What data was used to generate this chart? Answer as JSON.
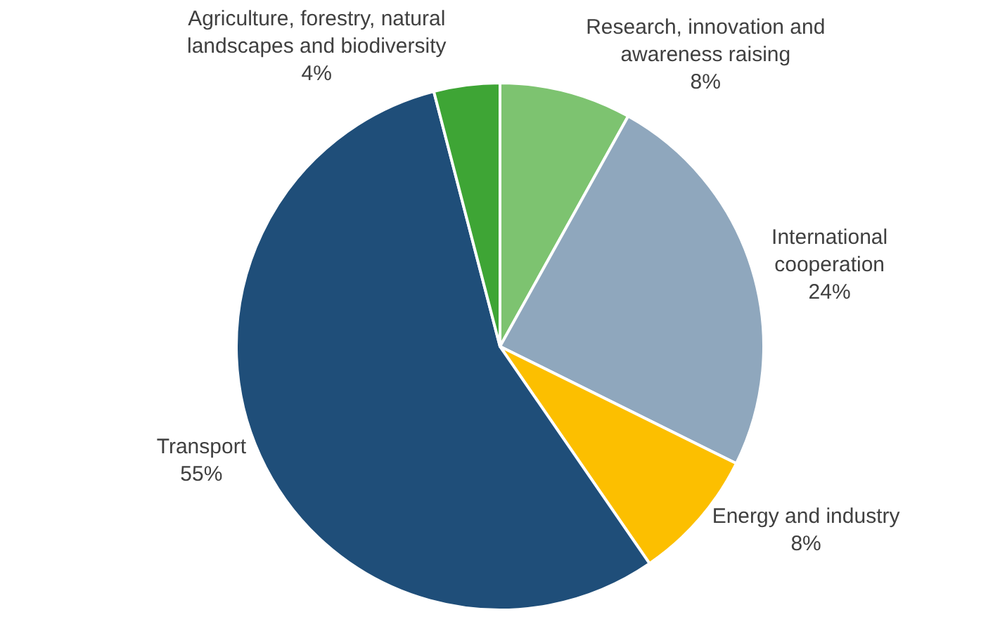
{
  "chart_data": {
    "type": "pie",
    "categories": [
      "Research, innovation and awareness raising",
      "International cooperation",
      "Energy and industry",
      "Transport",
      "Agriculture, forestry, natural landscapes and biodiversity"
    ],
    "values": [
      8,
      24,
      8,
      55,
      4
    ],
    "value_labels": [
      "8%",
      "24%",
      "8%",
      "55%",
      "4%"
    ],
    "colors": [
      "#7dc370",
      "#8fa7bd",
      "#fcbf00",
      "#1f4e79",
      "#3ea535"
    ],
    "legend": false
  }
}
